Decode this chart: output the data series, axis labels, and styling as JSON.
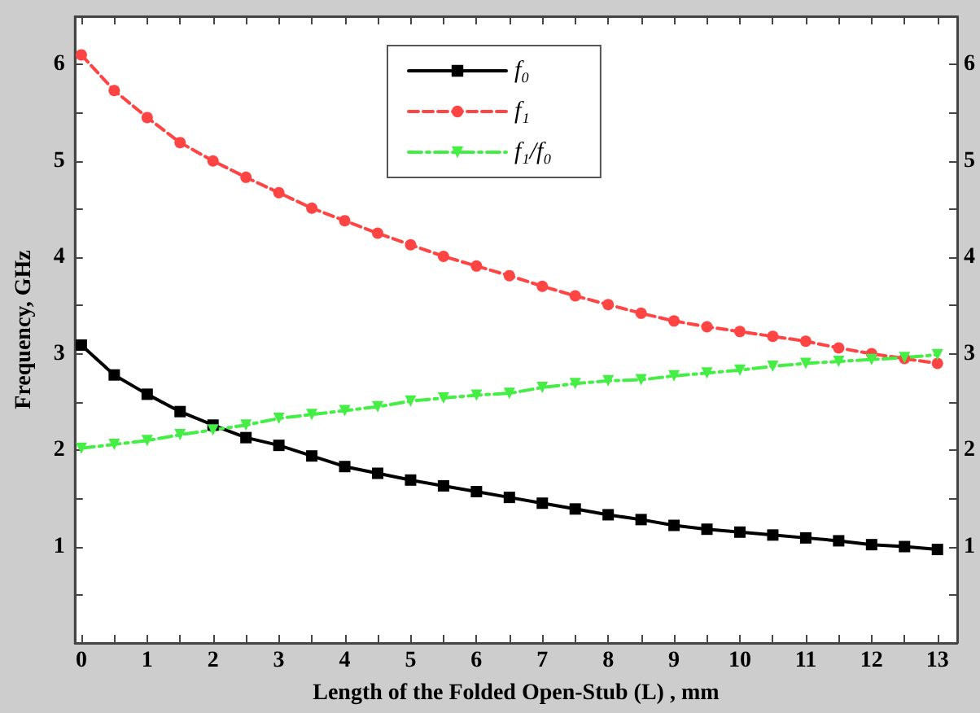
{
  "chart_data": {
    "type": "line",
    "xlabel": "Length of the Folded Open-Stub (L) , mm",
    "ylabel": "Frequency, GHz",
    "x": [
      0,
      0.5,
      1,
      1.5,
      2,
      2.5,
      3,
      3.5,
      4,
      4.5,
      5,
      5.5,
      6,
      6.5,
      7,
      7.5,
      8,
      8.5,
      9,
      9.5,
      10,
      10.5,
      11,
      11.5,
      12,
      12.5,
      13
    ],
    "series": [
      {
        "name": "f₀",
        "color": "#000000",
        "marker": "square",
        "line_style": "solid",
        "values": [
          3.09,
          2.78,
          2.58,
          2.4,
          2.26,
          2.13,
          2.05,
          1.94,
          1.83,
          1.76,
          1.69,
          1.63,
          1.57,
          1.51,
          1.45,
          1.39,
          1.33,
          1.28,
          1.22,
          1.18,
          1.15,
          1.12,
          1.09,
          1.06,
          1.02,
          1.0,
          0.97
        ]
      },
      {
        "name": "f₁",
        "color": "#ff4444",
        "marker": "circle",
        "line_style": "dashed",
        "values": [
          6.1,
          5.73,
          5.45,
          5.19,
          5.0,
          4.83,
          4.67,
          4.51,
          4.38,
          4.25,
          4.13,
          4.01,
          3.91,
          3.81,
          3.7,
          3.6,
          3.51,
          3.42,
          3.34,
          3.28,
          3.23,
          3.18,
          3.13,
          3.06,
          3.0,
          2.95,
          2.9
        ]
      },
      {
        "name": "f₁/f₀",
        "color": "#44ee44",
        "marker": "triangle-down",
        "line_style": "dashdot",
        "values": [
          2.02,
          2.06,
          2.1,
          2.16,
          2.21,
          2.26,
          2.33,
          2.37,
          2.41,
          2.45,
          2.51,
          2.54,
          2.57,
          2.59,
          2.65,
          2.69,
          2.72,
          2.73,
          2.77,
          2.8,
          2.83,
          2.87,
          2.9,
          2.92,
          2.94,
          2.96,
          2.99
        ]
      }
    ],
    "xlim": [
      -0.1,
      13.3
    ],
    "xticks": [
      0,
      {
        "value": 0.5,
        "label": null
      },
      1,
      {
        "value": 1.5,
        "label": null
      },
      2,
      {
        "value": 2.5,
        "label": null
      },
      3,
      {
        "value": 3.5,
        "label": null
      },
      4,
      {
        "value": 4.5,
        "label": null
      },
      5,
      {
        "value": 5.5,
        "label": null
      },
      6,
      {
        "value": 6.5,
        "label": null
      },
      7,
      {
        "value": 7.5,
        "label": null
      },
      8,
      {
        "value": 8.5,
        "label": null
      },
      9,
      {
        "value": 9.5,
        "label": null
      },
      10,
      {
        "value": 10.5,
        "label": null
      },
      11,
      {
        "value": 11.5,
        "label": null
      },
      12,
      {
        "value": 12.5,
        "label": null
      },
      13
    ],
    "ylim": [
      0,
      6.5
    ],
    "yticks": [
      {
        "value": 0.5,
        "label": null
      },
      1,
      {
        "value": 1.5,
        "label": null
      },
      2,
      {
        "value": 2.5,
        "label": null
      },
      3,
      {
        "value": 3.5,
        "label": null
      },
      4,
      {
        "value": 4.5,
        "label": null
      },
      5,
      {
        "value": 5.5,
        "label": null
      },
      6
    ],
    "y2lim": [
      0,
      6.5
    ],
    "y2ticks": [
      {
        "value": 0.5,
        "label": null
      },
      1,
      {
        "value": 1.5,
        "label": null
      },
      2,
      {
        "value": 2.5,
        "label": null
      },
      3,
      {
        "value": 3.5,
        "label": null
      },
      4,
      {
        "value": 4.5,
        "label": null
      },
      5,
      {
        "value": 5.5,
        "label": null
      },
      6
    ],
    "grid": false,
    "legend": "top"
  }
}
